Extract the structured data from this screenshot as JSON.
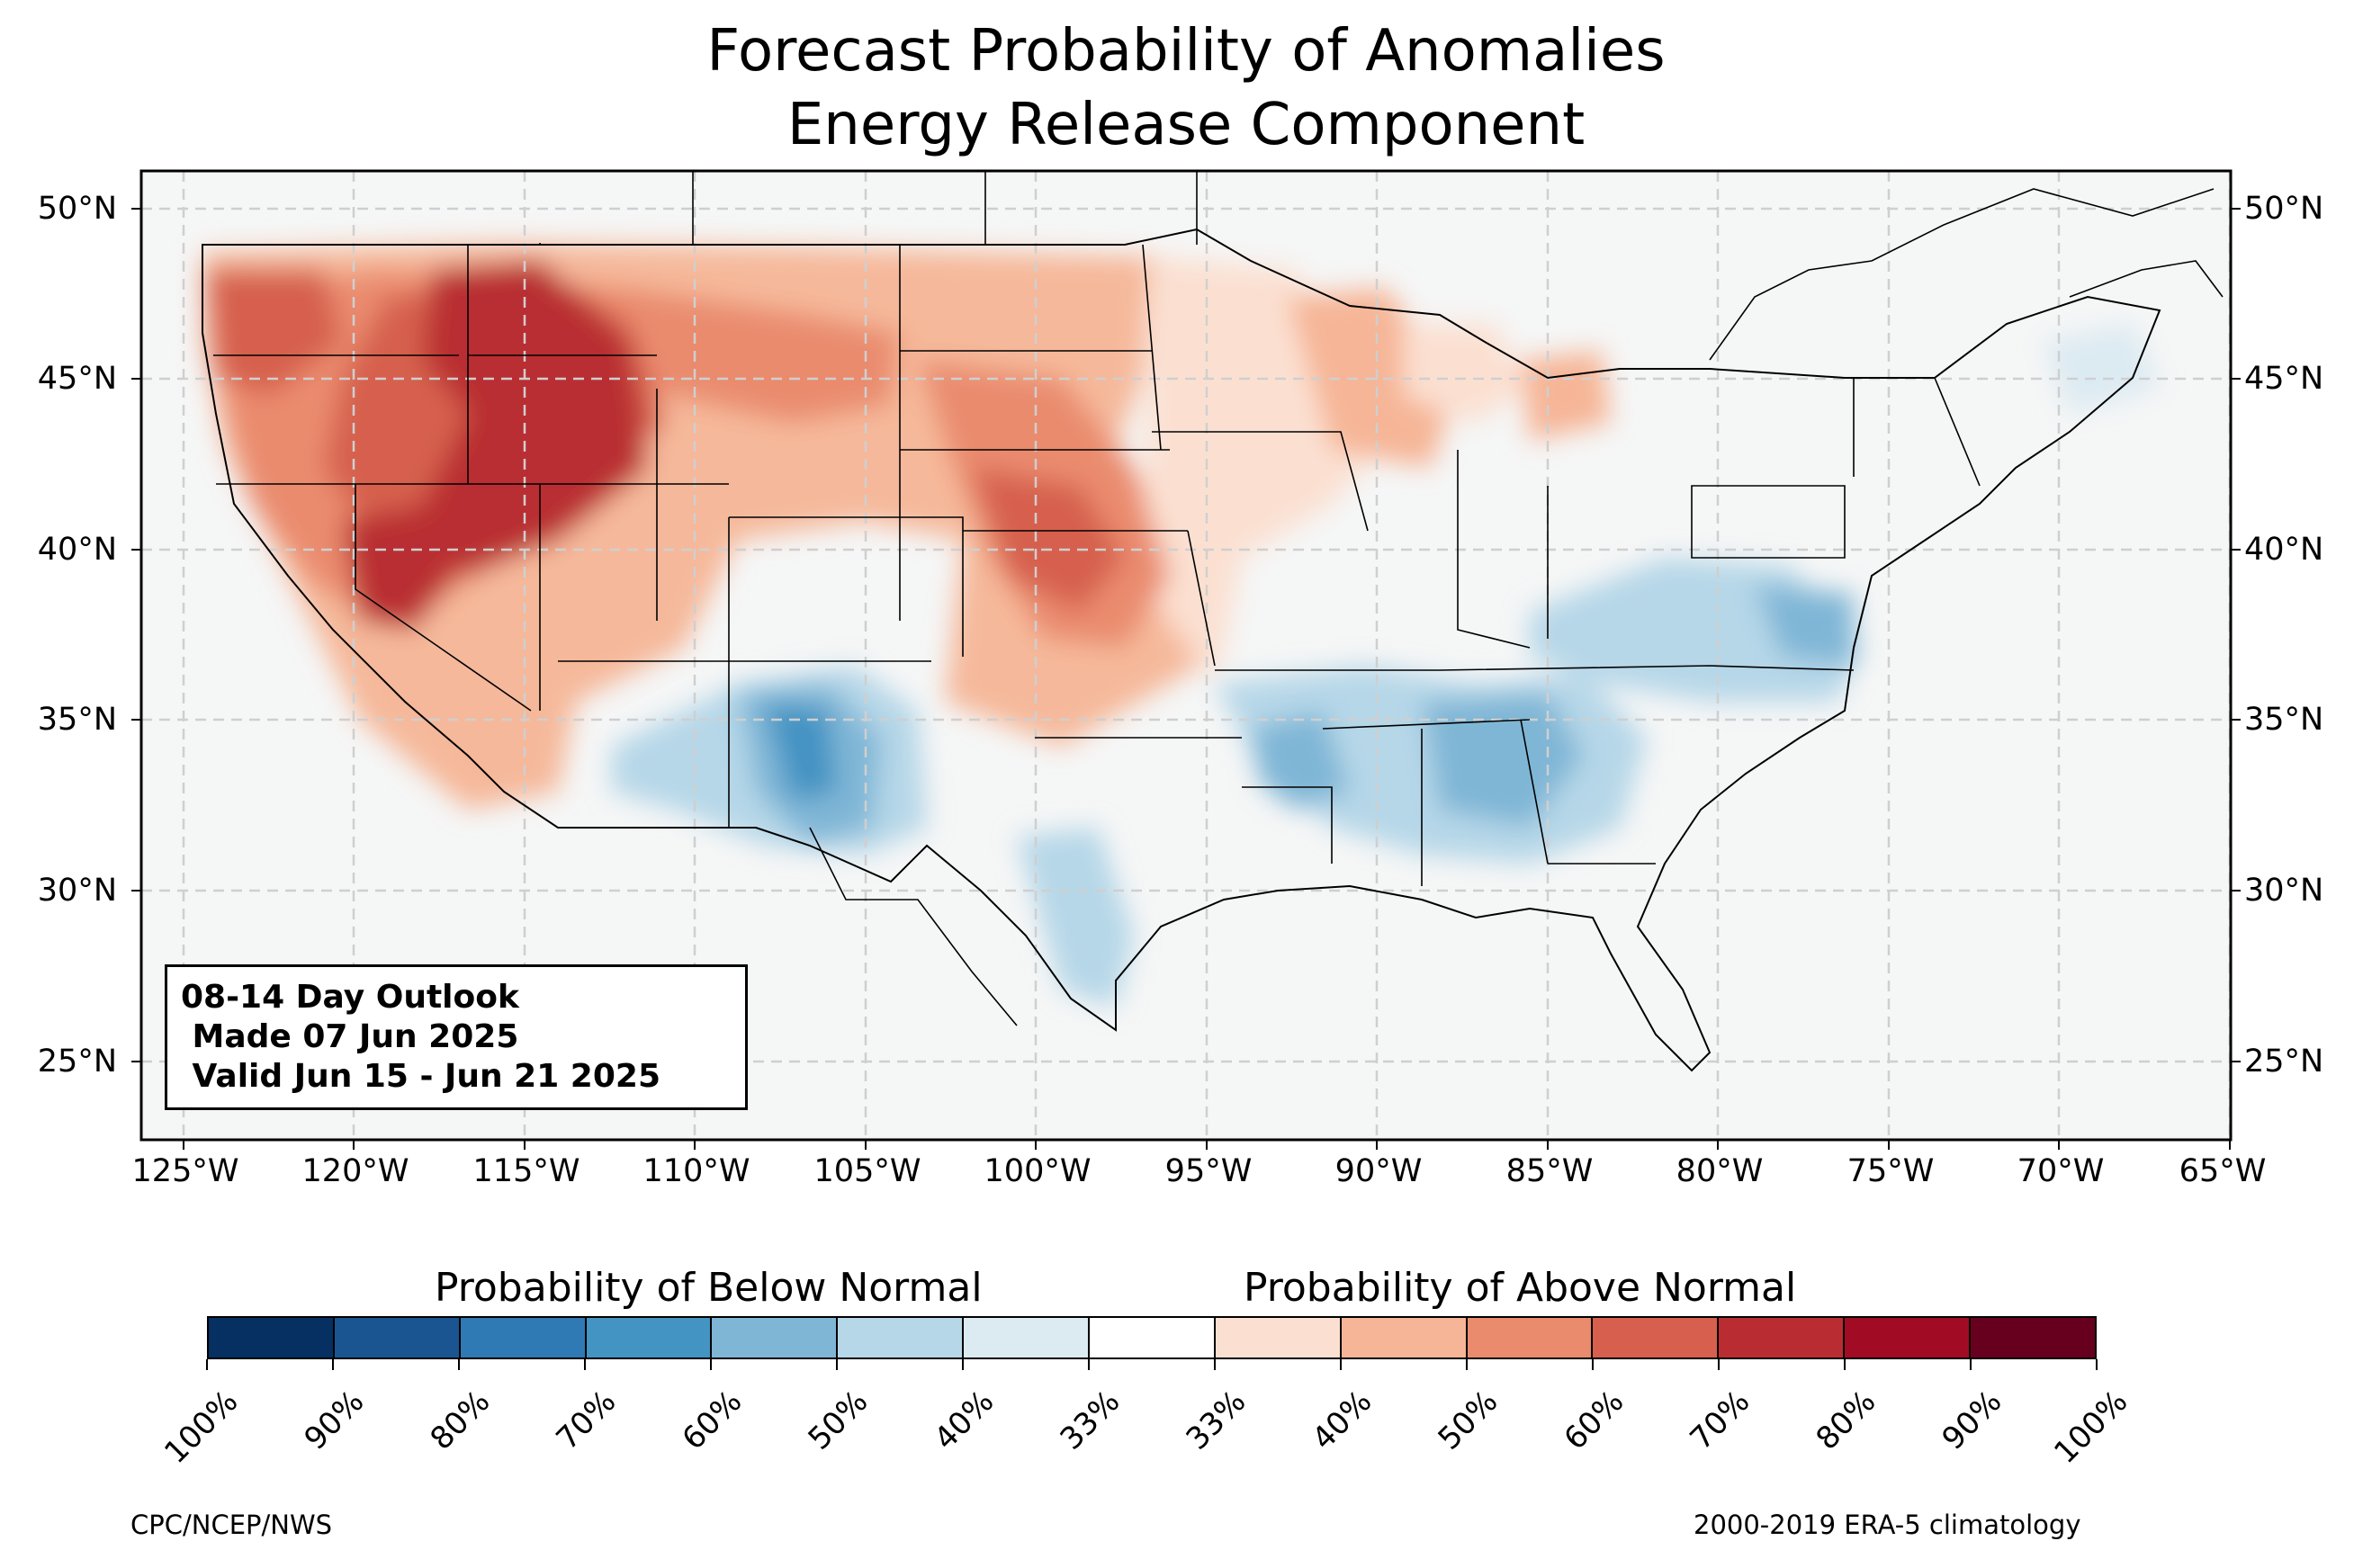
{
  "title": {
    "line1": "Forecast Probability of Anomalies",
    "line2": "Energy Release Component"
  },
  "map": {
    "lat_labels": [
      "50°N",
      "45°N",
      "40°N",
      "35°N",
      "30°N",
      "25°N"
    ],
    "lon_labels": [
      "125°W",
      "120°W",
      "115°W",
      "110°W",
      "105°W",
      "100°W",
      "95°W",
      "90°W",
      "85°W",
      "80°W",
      "75°W",
      "70°W",
      "65°W"
    ],
    "extent": {
      "lon_min": -126.2,
      "lon_max": -64.9,
      "lat_min": 22.7,
      "lat_max": 51.2
    },
    "colors": {
      "ocean": "#f5f6f6",
      "land": "#f5f6f6",
      "gridline": "#cfcfcf",
      "border": "#000000",
      "county": "#8a8a8a"
    }
  },
  "info_box": {
    "line1": "08-14 Day Outlook",
    "line2": " Made 07 Jun 2025",
    "line3": " Valid Jun 15 - Jun 21 2025"
  },
  "colorbar": {
    "below_title": "Probability of Below Normal",
    "above_title": "Probability of Above Normal",
    "tick_labels": [
      "100%",
      "90%",
      "80%",
      "70%",
      "60%",
      "50%",
      "40%",
      "33%",
      "33%",
      "40%",
      "50%",
      "60%",
      "70%",
      "80%",
      "90%",
      "100%"
    ],
    "colors": [
      "#053061",
      "#1a5591",
      "#2f79b5",
      "#4393c3",
      "#7fb6d6",
      "#b6d7e8",
      "#dceaf2",
      "#ffffff",
      "#fbe0d1",
      "#f6b596",
      "#ea8b6e",
      "#d6604d",
      "#b92d32",
      "#a10c24",
      "#67001f"
    ]
  },
  "credits": {
    "left": "CPC/NCEP/NWS",
    "right": "2000-2019 ERA-5 climatology"
  }
}
